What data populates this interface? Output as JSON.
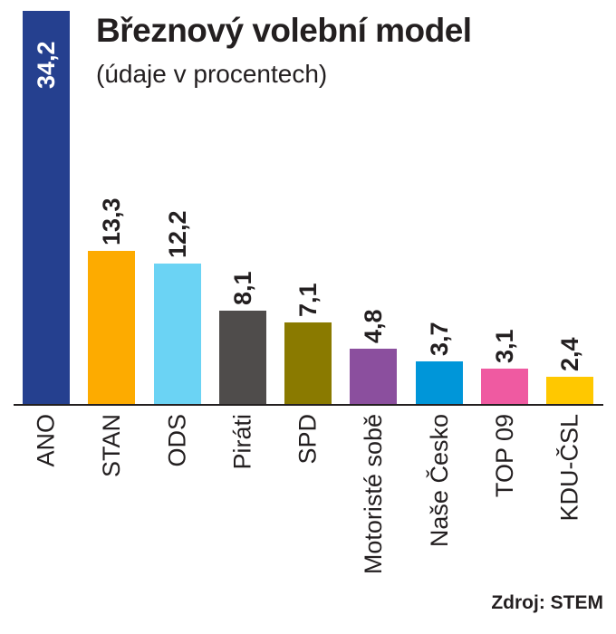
{
  "header": {
    "title": "Březnový volební model",
    "subtitle": "(údaje v procentech)"
  },
  "source": "Zdroj: STEM",
  "colors": {
    "ANO": "#25408f",
    "STAN": "#fdab00",
    "ODS": "#6bd3f4",
    "Piráti": "#4f4c4b",
    "SPD": "#8a7a00",
    "Motoristé sobě": "#8b4f9e",
    "Naše Česko": "#0096d9",
    "TOP 09": "#ef5aa1",
    "KDU-ČSL": "#ffc800",
    "text": "#231f20"
  },
  "bars": [
    {
      "party": "ANO",
      "value_label": "34,2"
    },
    {
      "party": "STAN",
      "value_label": "13,3"
    },
    {
      "party": "ODS",
      "value_label": "12,2"
    },
    {
      "party": "Piráti",
      "value_label": "8,1"
    },
    {
      "party": "SPD",
      "value_label": "7,1"
    },
    {
      "party": "Motoristé sobě",
      "value_label": "4,8"
    },
    {
      "party": "Naše Česko",
      "value_label": "3,7"
    },
    {
      "party": "TOP 09",
      "value_label": "3,1"
    },
    {
      "party": "KDU-ČSL",
      "value_label": "2,4"
    }
  ],
  "chart_data": {
    "type": "bar",
    "title": "Březnový volební model",
    "subtitle": "(údaje v procentech)",
    "categories": [
      "ANO",
      "STAN",
      "ODS",
      "Piráti",
      "SPD",
      "Motoristé sobě",
      "Naše Česko",
      "TOP 09",
      "KDU-ČSL"
    ],
    "values": [
      34.2,
      13.3,
      12.2,
      8.1,
      7.1,
      4.8,
      3.7,
      3.1,
      2.4
    ],
    "colors": [
      "#25408f",
      "#fdab00",
      "#6bd3f4",
      "#4f4c4b",
      "#8a7a00",
      "#8b4f9e",
      "#0096d9",
      "#ef5aa1",
      "#ffc800"
    ],
    "xlabel": "",
    "ylabel": "",
    "unit": "%",
    "data_labels": true,
    "grid": false,
    "legend": "none",
    "source": "Zdroj: STEM"
  }
}
